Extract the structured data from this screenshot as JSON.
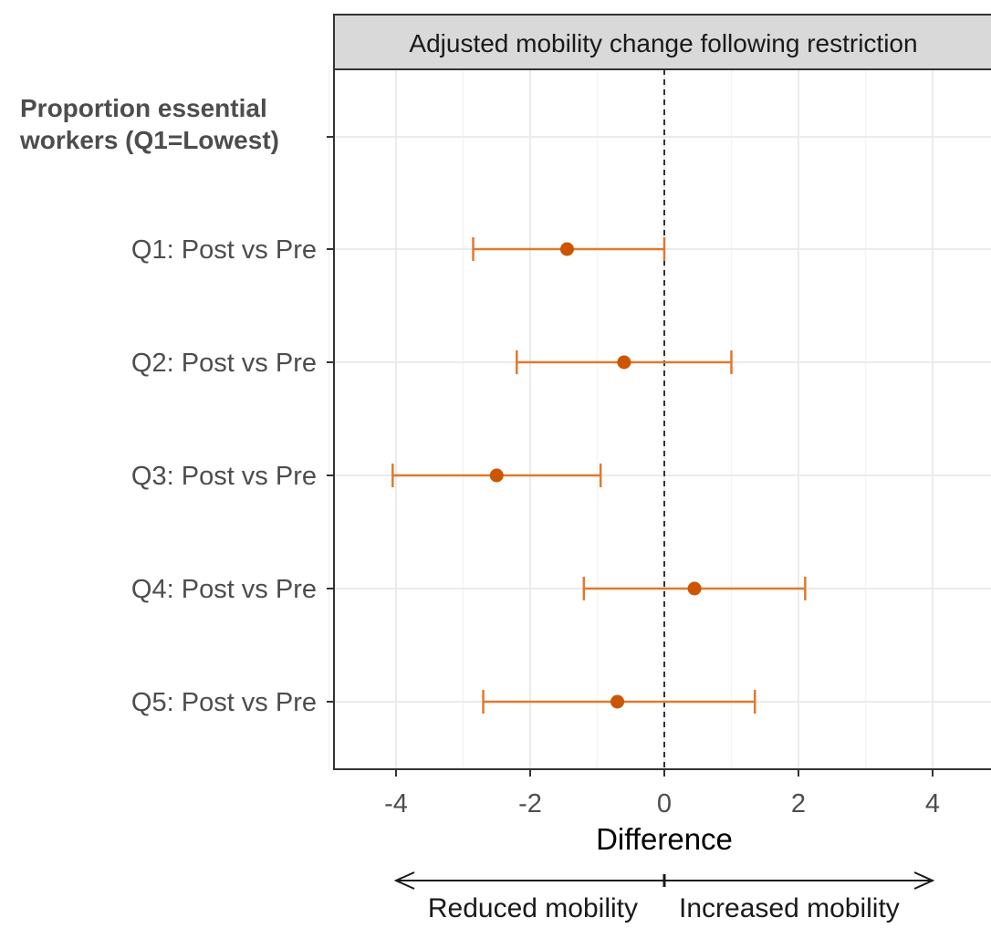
{
  "chart_data": {
    "type": "scatter",
    "subtype": "forest-plot",
    "facet_title": "Adjusted mobility change following restriction",
    "group_heading_line1": "Proportion essential",
    "group_heading_line2": "workers (Q1=Lowest)",
    "xlabel": "Difference",
    "xlim": [
      -5,
      4.8
    ],
    "xticks": [
      -4,
      -2,
      0,
      2,
      4
    ],
    "reference_line": 0,
    "grid": true,
    "point_color": "#cc5500",
    "errorbar_color": "#e0792e",
    "direction_labels": {
      "left": "Reduced mobility",
      "right": "Increased mobility"
    },
    "rows": [
      {
        "label": "Q1: Post vs Pre",
        "estimate": -1.45,
        "lower": -2.85,
        "upper": 0.0
      },
      {
        "label": "Q2: Post vs Pre",
        "estimate": -0.6,
        "lower": -2.2,
        "upper": 1.0
      },
      {
        "label": "Q3: Post vs Pre",
        "estimate": -2.5,
        "lower": -4.05,
        "upper": -0.95
      },
      {
        "label": "Q4: Post vs Pre",
        "estimate": 0.45,
        "lower": -1.2,
        "upper": 2.1
      },
      {
        "label": "Q5: Post vs Pre",
        "estimate": -0.7,
        "lower": -2.7,
        "upper": 1.35
      }
    ]
  }
}
